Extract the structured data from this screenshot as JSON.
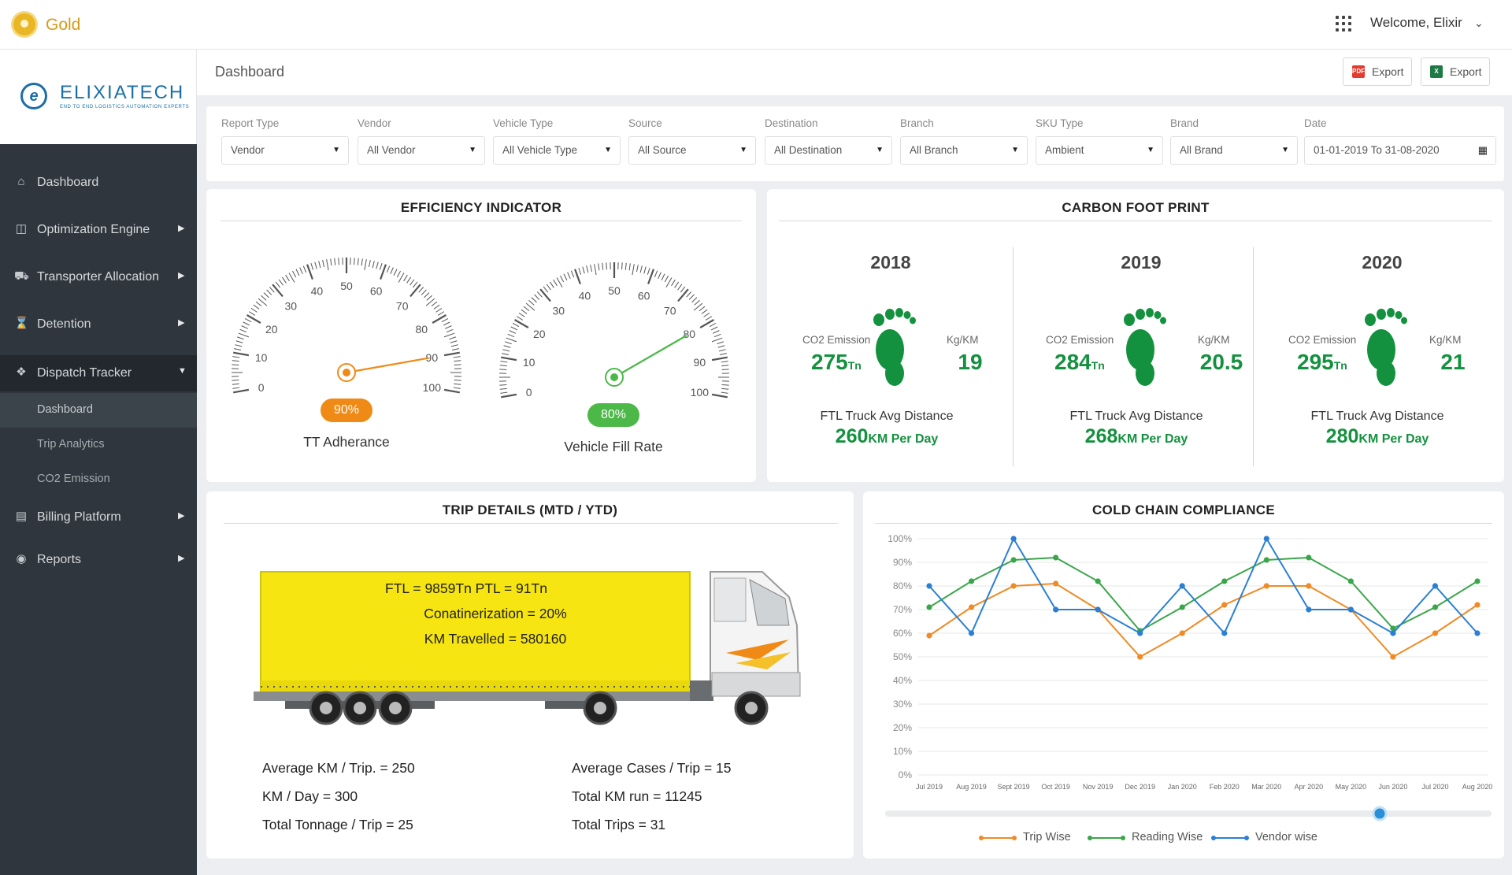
{
  "topbar": {
    "tier_label": "Gold",
    "welcome_text": "Welcome, Elixir"
  },
  "brand": {
    "name": "ELIXIATECH",
    "tagline": "END TO END LOGISTICS AUTOMATION EXPERTS",
    "mark": "e"
  },
  "sidebar": {
    "items": [
      {
        "label": "Dashboard",
        "icon": "home-icon"
      },
      {
        "label": "Optimization Engine",
        "icon": "cube-icon"
      },
      {
        "label": "Transporter Allocation",
        "icon": "truck-icon"
      },
      {
        "label": "Detention",
        "icon": "hourglass-icon"
      },
      {
        "label": "Dispatch Tracker",
        "icon": "route-icon"
      },
      {
        "label": "Billing Platform",
        "icon": "bill-icon"
      },
      {
        "label": "Reports",
        "icon": "report-icon"
      }
    ],
    "subitems": [
      "Dashboard",
      "Trip Analytics",
      "CO2 Emission"
    ]
  },
  "header": {
    "breadcrumb": "Dashboard",
    "export_pdf_label": "Export",
    "export_xls_label": "Export"
  },
  "filters": [
    {
      "label": "Report Type",
      "value": "Vendor"
    },
    {
      "label": "Vendor",
      "value": "All Vendor"
    },
    {
      "label": "Vehicle Type",
      "value": "All Vehicle Type"
    },
    {
      "label": "Source",
      "value": "All Source"
    },
    {
      "label": "Destination",
      "value": "All Destination"
    },
    {
      "label": "Branch",
      "value": "All Branch"
    },
    {
      "label": "SKU Type",
      "value": "Ambient"
    },
    {
      "label": "Brand",
      "value": "All Brand"
    },
    {
      "label": "Date",
      "value": "01-01-2019 To 31-08-2020"
    }
  ],
  "efficiency": {
    "title": "EFFICIENCY INDICATOR",
    "gauges": [
      {
        "label": "TT Adherance",
        "value_text": "90%",
        "value": 90,
        "color": "#f08a16"
      },
      {
        "label": "Vehicle Fill Rate",
        "value_text": "80%",
        "value": 80,
        "color": "#4cb848"
      }
    ],
    "ticks": [
      "0",
      "10",
      "20",
      "30",
      "40",
      "50",
      "60",
      "70",
      "80",
      "90",
      "100"
    ]
  },
  "carbon": {
    "title": "CARBON FOOT PRINT",
    "co2_label": "CO2 Emission",
    "unit_label": "Kg/KM",
    "dist_label": "FTL Truck Avg Distance",
    "ton_suffix": "Tn",
    "dist_suffix": "KM Per Day",
    "years": [
      {
        "year": "2018",
        "co2": "275",
        "kgkm": "19",
        "dist": "260"
      },
      {
        "year": "2019",
        "co2": "284",
        "kgkm": "20.5",
        "dist": "268"
      },
      {
        "year": "2020",
        "co2": "295",
        "kgkm": "21",
        "dist": "280"
      }
    ],
    "accent": "#14913f"
  },
  "trip": {
    "title": "TRIP DETAILS (MTD / YTD)",
    "truck_lines": [
      "FTL = 9859Tn PTL = 91Tn",
      "Conatinerization = 20%",
      "KM Travelled = 580160"
    ],
    "stats_left": [
      "Average KM / Trip. = 250",
      "KM / Day = 300",
      "Total Tonnage / Trip = 25"
    ],
    "stats_right": [
      "Average Cases / Trip = 15",
      "Total KM run = 11245",
      "Total Trips = 31"
    ]
  },
  "chart_data": {
    "type": "line",
    "title": "COLD CHAIN COMPLIANCE",
    "x": [
      "Jul 2019",
      "Aug 2019",
      "Sept 2019",
      "Oct 2019",
      "Nov 2019",
      "Dec 2019",
      "Jan 2020",
      "Feb 2020",
      "Mar 2020",
      "Apr 2020",
      "May 2020",
      "Jun 2020",
      "Jul 2020",
      "Aug 2020"
    ],
    "yticks": [
      "0%",
      "10%",
      "20%",
      "30%",
      "40%",
      "50%",
      "60%",
      "70%",
      "80%",
      "90%",
      "100%"
    ],
    "ylim": [
      0,
      100
    ],
    "series": [
      {
        "name": "Trip Wise",
        "color": "#f08a24",
        "values": [
          59,
          71,
          80,
          81,
          70,
          50,
          60,
          72,
          80,
          80,
          70,
          50,
          60,
          72
        ]
      },
      {
        "name": "Reading Wise",
        "color": "#3aa64a",
        "values": [
          71,
          82,
          91,
          92,
          82,
          61,
          71,
          82,
          91,
          92,
          82,
          62,
          71,
          82
        ]
      },
      {
        "name": "Vendor wise",
        "color": "#2a7fd4",
        "values": [
          80,
          60,
          100,
          70,
          70,
          60,
          80,
          60,
          100,
          70,
          70,
          60,
          80,
          60
        ]
      }
    ],
    "grid": true,
    "legend": "bottom"
  }
}
